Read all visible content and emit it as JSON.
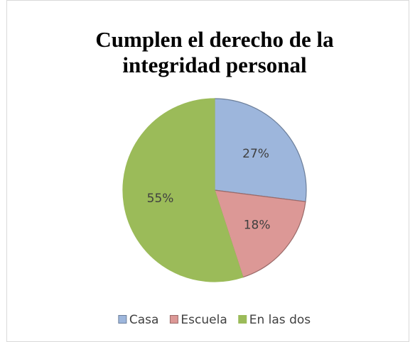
{
  "chart_data": {
    "type": "pie",
    "title": "Cumplen el derecho de la integridad personal",
    "categories": [
      "Casa",
      "Escuela",
      "En las dos"
    ],
    "values": [
      27,
      18,
      55
    ],
    "value_labels": [
      "27%",
      "18%",
      "55%"
    ],
    "colors": [
      "#9db6dc",
      "#dc9896",
      "#9bbb59"
    ],
    "legend": "bottom"
  }
}
